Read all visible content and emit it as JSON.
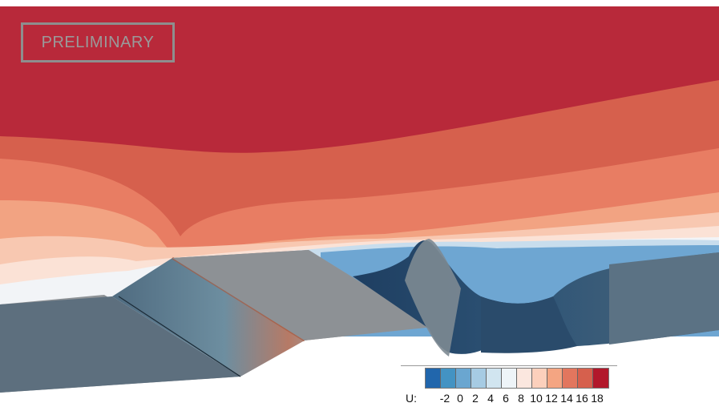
{
  "watermark": {
    "text": "PRELIMINARY"
  },
  "legend": {
    "title": "U:",
    "ticks": [
      "-2",
      "0",
      "2",
      "4",
      "6",
      "8",
      "10",
      "12",
      "14",
      "16",
      "18"
    ],
    "colors": [
      "#2166ac",
      "#4393c3",
      "#6aa6d0",
      "#a6cbe3",
      "#d1e5f0",
      "#eef4f8",
      "#fbe7df",
      "#fcd0bc",
      "#f4a582",
      "#e2765e",
      "#d6604d",
      "#b2182b"
    ]
  }
}
